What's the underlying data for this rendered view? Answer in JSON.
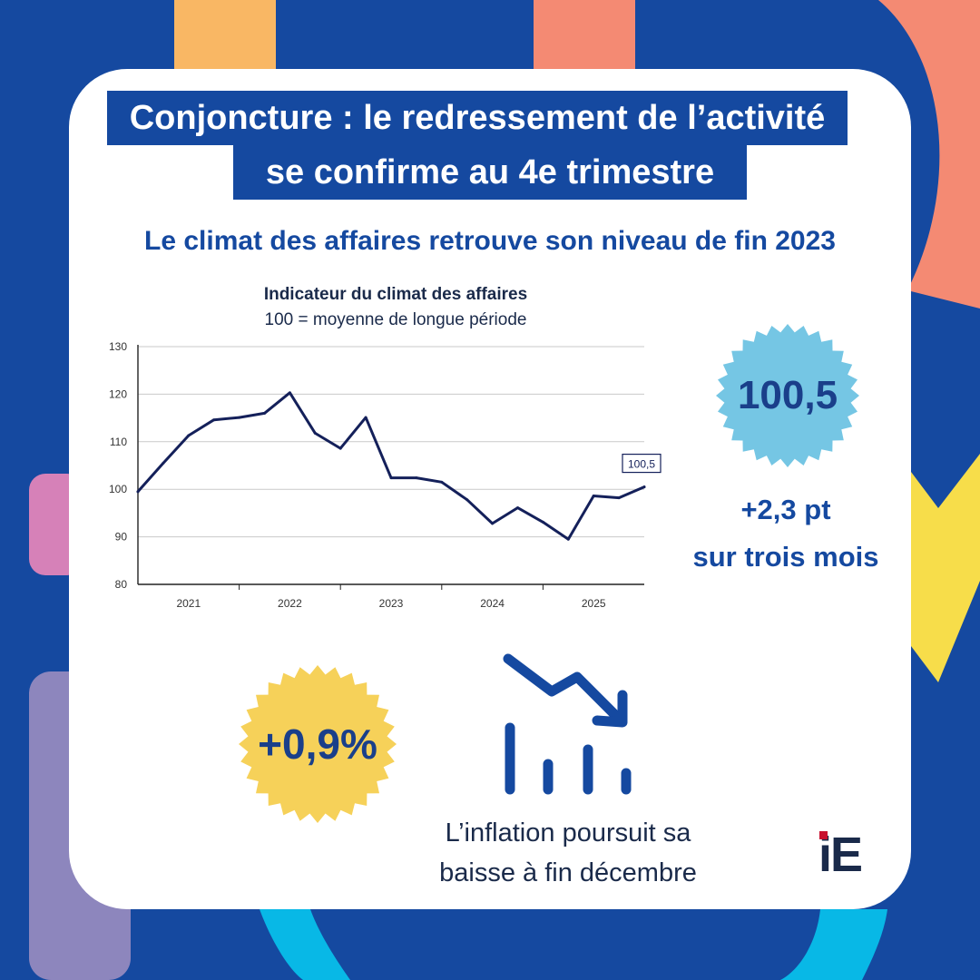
{
  "title": {
    "line1": "Conjoncture : le redressement de l’activité",
    "line2": "se confirme au 4e trimestre"
  },
  "subtitle": "Le climat des affaires retrouve son niveau de fin 2023",
  "chart_data": {
    "type": "line",
    "title": "Indicateur du climat des affaires",
    "subtitle": "100 = moyenne de longue période",
    "xlabel": "",
    "ylabel": "",
    "xlim": [
      2020.5,
      2025.5
    ],
    "ylim": [
      80,
      130
    ],
    "yticks": [
      80,
      90,
      100,
      110,
      120,
      130
    ],
    "xticks": [
      {
        "value": 2021,
        "label": "2021"
      },
      {
        "value": 2022,
        "label": "2022"
      },
      {
        "value": 2023,
        "label": "2023"
      },
      {
        "value": 2024,
        "label": "2024"
      },
      {
        "value": 2025,
        "label": "2025"
      }
    ],
    "grid": true,
    "series": [
      {
        "name": "Indicateur du climat des affaires",
        "color": "#14205a",
        "x": [
          2020.5,
          2020.75,
          2021.0,
          2021.25,
          2021.5,
          2021.75,
          2022.0,
          2022.25,
          2022.5,
          2022.75,
          2023.0,
          2023.25,
          2023.5,
          2023.75,
          2024.0,
          2024.25,
          2024.5,
          2024.75,
          2025.0,
          2025.25,
          2025.5
        ],
        "y": [
          99.5,
          105.5,
          111.3,
          114.6,
          115.1,
          116.0,
          120.3,
          111.8,
          108.6,
          115.1,
          102.4,
          102.4,
          101.5,
          97.8,
          92.8,
          96.1,
          93.1,
          89.5,
          98.6,
          98.2,
          100.5
        ]
      }
    ],
    "annotation": {
      "label": "100,5",
      "x": 2025.5,
      "y": 100.5
    }
  },
  "climate_badge": {
    "value": "100,5",
    "color": "#75c6e4"
  },
  "climate_change": {
    "line1": "+2,3 pt",
    "line2": "sur trois mois"
  },
  "inflation_badge": {
    "value": "+0,9%",
    "color": "#f6d159"
  },
  "inflation_caption": {
    "line1": "L’inflation poursuit sa",
    "line2": "baisse à fin décembre"
  },
  "logo": {
    "text": "iE",
    "accent": "#c8102e"
  },
  "colors": {
    "brand_blue": "#1549a0",
    "navy": "#14205a",
    "orange": "#f9b764",
    "salmon": "#f48a73",
    "pink": "#d681b8",
    "purple": "#8d86bd",
    "cyan": "#08b8e6",
    "yellow": "#f7dd4a"
  }
}
